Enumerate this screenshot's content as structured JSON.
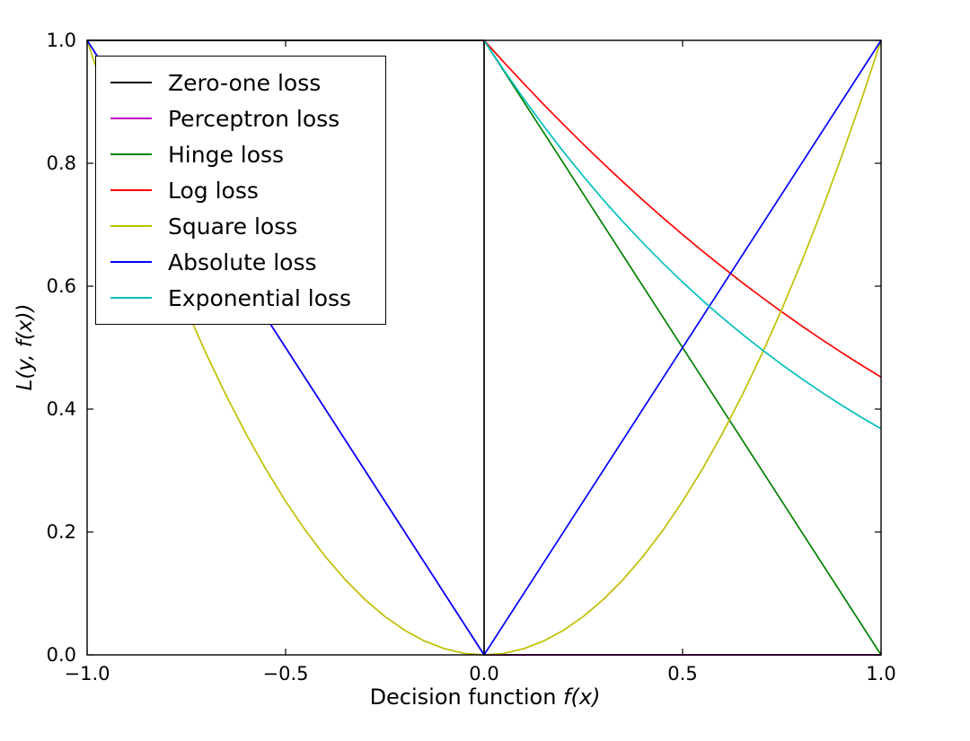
{
  "figure": {
    "xlabel_text": "Decision function",
    "xlabel_math": "f(x)",
    "ylabel_math": "L(y, f(x))"
  },
  "chart_data": {
    "type": "line",
    "title": "",
    "xlabel": "Decision function f(x)",
    "ylabel": "L(y, f(x))",
    "xlim": [
      -1.0,
      1.0
    ],
    "ylim": [
      0.0,
      1.0
    ],
    "grid": false,
    "legend_position": "upper left",
    "xticks": [
      -1.0,
      -0.5,
      0.0,
      0.5,
      1.0
    ],
    "xtick_labels": [
      "−1.0",
      "−0.5",
      "0.0",
      "0.5",
      "1.0"
    ],
    "yticks": [
      0.0,
      0.2,
      0.4,
      0.6,
      0.8,
      1.0
    ],
    "ytick_labels": [
      "0.0",
      "0.2",
      "0.4",
      "0.6",
      "0.8",
      "1.0"
    ],
    "series": [
      {
        "name": "Zero-one loss",
        "color": "#000000",
        "points": [
          [
            -1.0,
            1.0
          ],
          [
            0.0,
            1.0
          ],
          [
            0.0,
            0.0
          ],
          [
            1.0,
            0.0
          ]
        ]
      },
      {
        "name": "Perceptron loss",
        "color": "#bf00bf",
        "points": [
          [
            -1.0,
            1.0
          ],
          [
            0.0,
            0.0
          ],
          [
            1.0,
            0.0
          ]
        ]
      },
      {
        "name": "Hinge loss",
        "color": "#008000",
        "points": [
          [
            0.0,
            1.0
          ],
          [
            1.0,
            0.0
          ]
        ]
      },
      {
        "name": "Log loss",
        "color": "#ff0000",
        "points": [
          [
            0.0,
            1.0
          ],
          [
            0.05,
            0.9644
          ],
          [
            0.1,
            0.9297
          ],
          [
            0.15,
            0.8958
          ],
          [
            0.2,
            0.8629
          ],
          [
            0.25,
            0.8309
          ],
          [
            0.3,
            0.7998
          ],
          [
            0.35,
            0.7695
          ],
          [
            0.4,
            0.7401
          ],
          [
            0.45,
            0.7116
          ],
          [
            0.5,
            0.6839
          ],
          [
            0.55,
            0.6571
          ],
          [
            0.6,
            0.6312
          ],
          [
            0.65,
            0.606
          ],
          [
            0.7,
            0.5817
          ],
          [
            0.75,
            0.5581
          ],
          [
            0.8,
            0.5354
          ],
          [
            0.85,
            0.5134
          ],
          [
            0.9,
            0.4922
          ],
          [
            0.95,
            0.4717
          ],
          [
            1.0,
            0.4519
          ]
        ]
      },
      {
        "name": "Square loss",
        "color": "#bfbf00",
        "points": [
          [
            -1.0,
            1.0
          ],
          [
            -0.95,
            0.9025
          ],
          [
            -0.9,
            0.81
          ],
          [
            -0.85,
            0.7225
          ],
          [
            -0.8,
            0.64
          ],
          [
            -0.75,
            0.5625
          ],
          [
            -0.7,
            0.49
          ],
          [
            -0.65,
            0.4225
          ],
          [
            -0.6,
            0.36
          ],
          [
            -0.55,
            0.3025
          ],
          [
            -0.5,
            0.25
          ],
          [
            -0.45,
            0.2025
          ],
          [
            -0.4,
            0.16
          ],
          [
            -0.35,
            0.1225
          ],
          [
            -0.3,
            0.09
          ],
          [
            -0.25,
            0.0625
          ],
          [
            -0.2,
            0.04
          ],
          [
            -0.15,
            0.0225
          ],
          [
            -0.1,
            0.01
          ],
          [
            -0.05,
            0.0025
          ],
          [
            0.0,
            0.0
          ],
          [
            0.05,
            0.0025
          ],
          [
            0.1,
            0.01
          ],
          [
            0.15,
            0.0225
          ],
          [
            0.2,
            0.04
          ],
          [
            0.25,
            0.0625
          ],
          [
            0.3,
            0.09
          ],
          [
            0.35,
            0.1225
          ],
          [
            0.4,
            0.16
          ],
          [
            0.45,
            0.2025
          ],
          [
            0.5,
            0.25
          ],
          [
            0.55,
            0.3025
          ],
          [
            0.6,
            0.36
          ],
          [
            0.65,
            0.4225
          ],
          [
            0.7,
            0.49
          ],
          [
            0.75,
            0.5625
          ],
          [
            0.8,
            0.64
          ],
          [
            0.85,
            0.7225
          ],
          [
            0.9,
            0.81
          ],
          [
            0.95,
            0.9025
          ],
          [
            1.0,
            1.0
          ]
        ]
      },
      {
        "name": "Absolute loss",
        "color": "#0000ff",
        "points": [
          [
            -1.0,
            1.0
          ],
          [
            0.0,
            0.0
          ],
          [
            1.0,
            1.0
          ]
        ]
      },
      {
        "name": "Exponential loss",
        "color": "#00bfbf",
        "points": [
          [
            0.0,
            1.0
          ],
          [
            0.05,
            0.9512
          ],
          [
            0.1,
            0.9048
          ],
          [
            0.15,
            0.8607
          ],
          [
            0.2,
            0.8187
          ],
          [
            0.25,
            0.7788
          ],
          [
            0.3,
            0.7408
          ],
          [
            0.35,
            0.7047
          ],
          [
            0.4,
            0.6703
          ],
          [
            0.45,
            0.6376
          ],
          [
            0.5,
            0.6065
          ],
          [
            0.55,
            0.5769
          ],
          [
            0.6,
            0.5488
          ],
          [
            0.65,
            0.522
          ],
          [
            0.7,
            0.4966
          ],
          [
            0.75,
            0.4724
          ],
          [
            0.8,
            0.4493
          ],
          [
            0.85,
            0.4274
          ],
          [
            0.9,
            0.4066
          ],
          [
            0.95,
            0.3867
          ],
          [
            1.0,
            0.3679
          ]
        ]
      }
    ]
  }
}
